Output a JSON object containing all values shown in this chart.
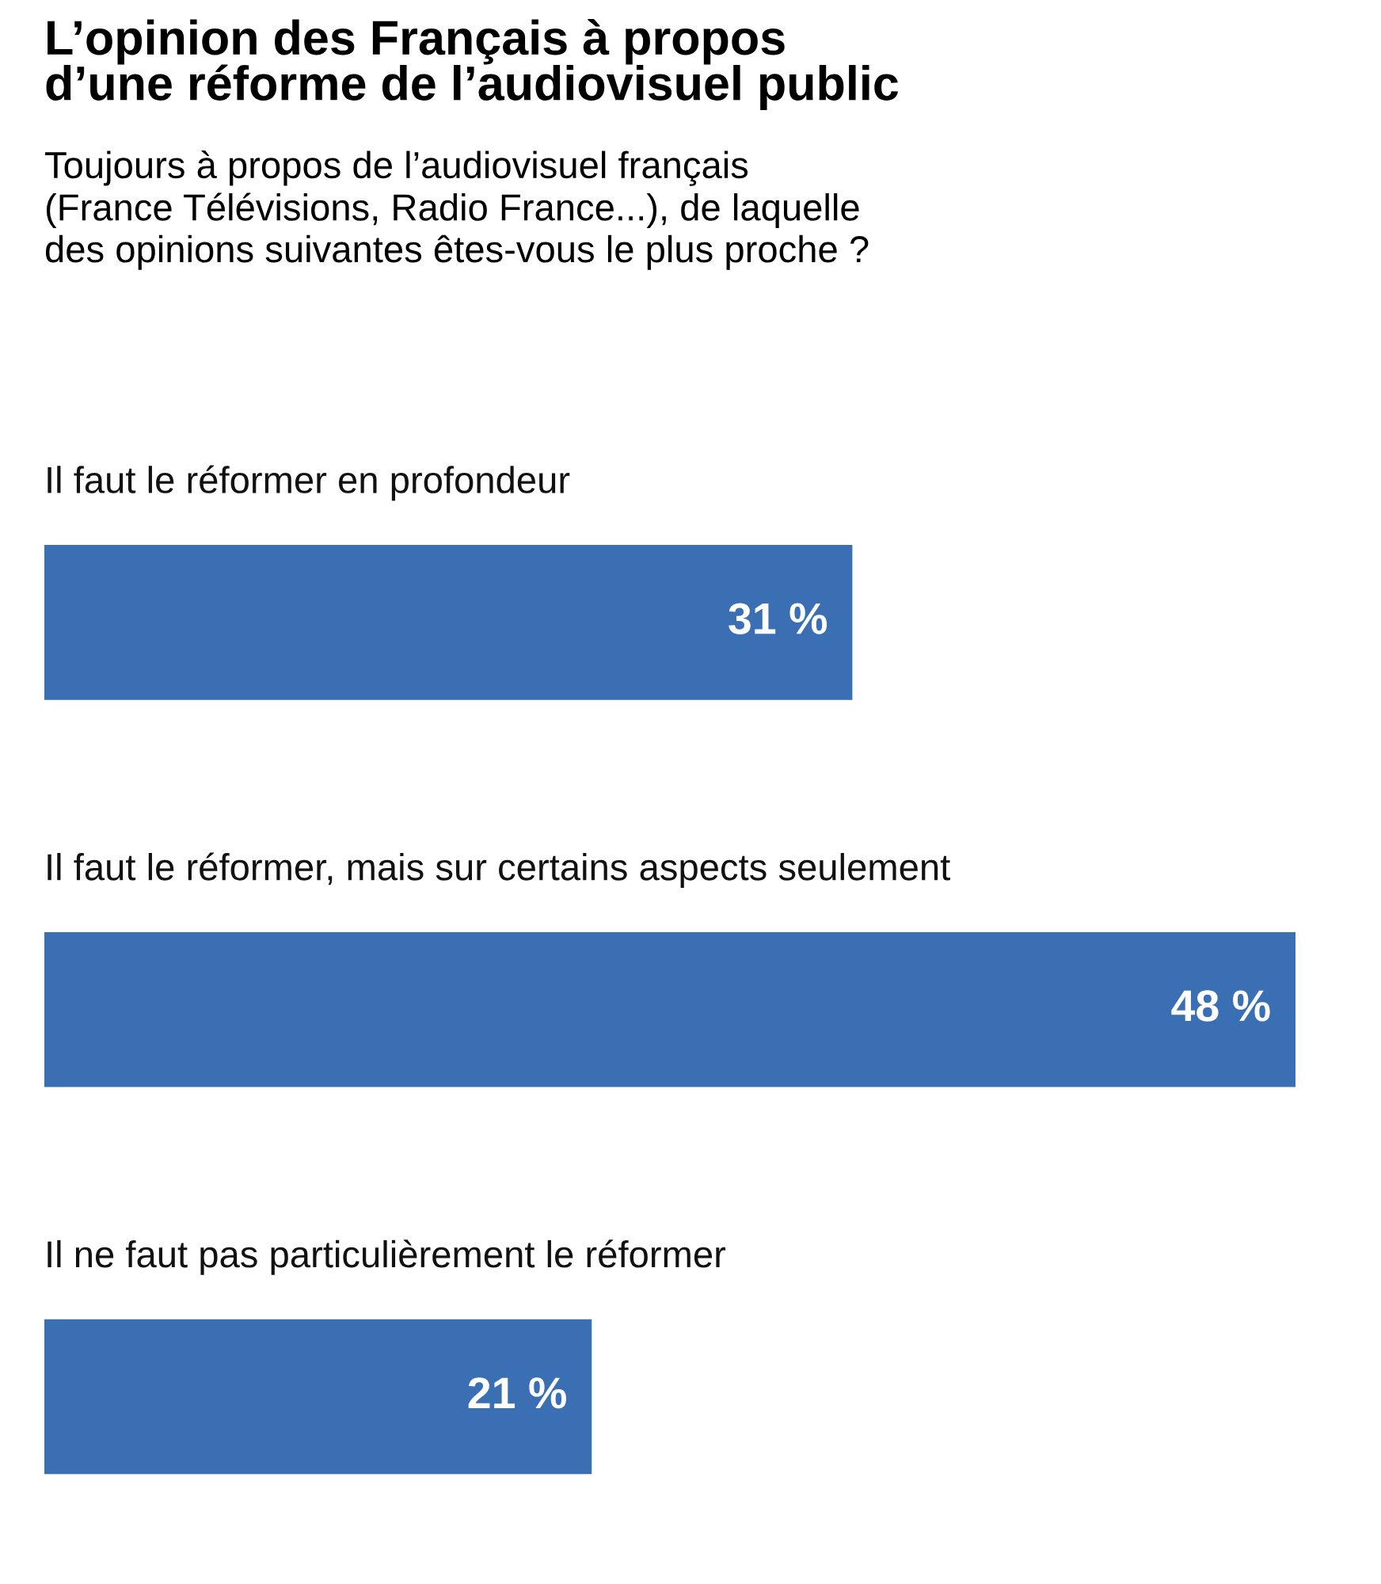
{
  "chart_data": {
    "type": "bar",
    "orientation": "horizontal",
    "title": "L’opinion des Français à propos\nd’une réforme de l’audiovisuel public",
    "subtitle": "Toujours à propos de l’audiovisuel français\n(France Télévisions, Radio France...), de laquelle\ndes opinions suivantes êtes-vous le plus proche ?",
    "categories": [
      "Il faut le réformer en profondeur",
      "Il faut le réformer, mais sur certains aspects seulement",
      "Il ne faut pas particulièrement le réformer"
    ],
    "values": [
      31,
      48,
      21
    ],
    "value_labels": [
      "31 %",
      "48 %",
      "21 %"
    ],
    "color": "#3a70b3"
  }
}
